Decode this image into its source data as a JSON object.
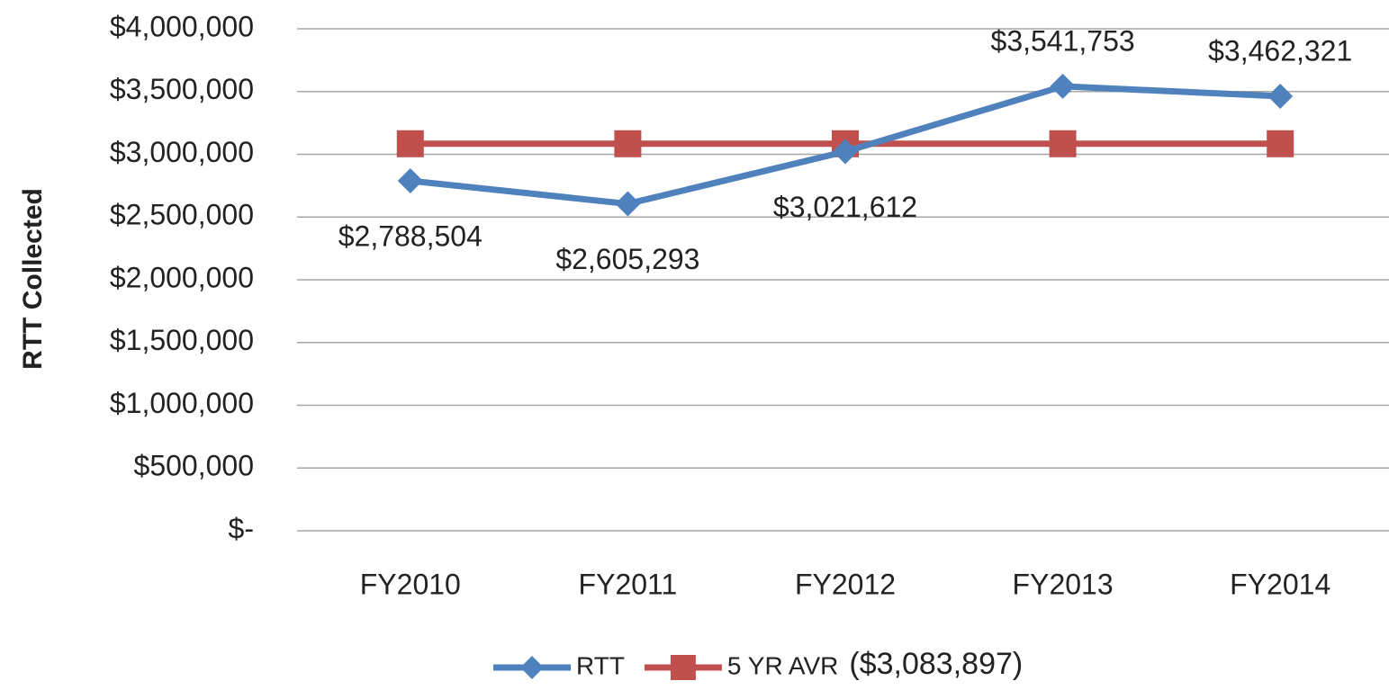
{
  "chart_data": {
    "type": "line",
    "y_axis_label": "RTT Collected",
    "categories": [
      "FY2010",
      "FY2011",
      "FY2012",
      "FY2013",
      "FY2014"
    ],
    "series": [
      {
        "name": "RTT",
        "color": "#4f81bd",
        "marker": "diamond",
        "values": [
          2788504,
          2605293,
          3021612,
          3541753,
          3462321
        ],
        "value_labels": [
          "$2,788,504",
          "$2,605,293",
          "$3,021,612",
          "$3,541,753",
          "$3,462,321"
        ]
      },
      {
        "name": "5 YR AVR",
        "color": "#c0504d",
        "marker": "square",
        "values": [
          3083897,
          3083897,
          3083897,
          3083897,
          3083897
        ]
      }
    ],
    "legend_note": "($3,083,897)",
    "legend": "bottom",
    "ylim": [
      0,
      4000000
    ],
    "yticks": [
      {
        "value": 0,
        "label": "$-"
      },
      {
        "value": 500000,
        "label": "$500,000"
      },
      {
        "value": 1000000,
        "label": "$1,000,000"
      },
      {
        "value": 1500000,
        "label": "$1,500,000"
      },
      {
        "value": 2000000,
        "label": "$2,000,000"
      },
      {
        "value": 2500000,
        "label": "$2,500,000"
      },
      {
        "value": 3000000,
        "label": "$3,000,000"
      },
      {
        "value": 3500000,
        "label": "$3,500,000"
      },
      {
        "value": 4000000,
        "label": "$4,000,000"
      }
    ],
    "grid": true
  }
}
